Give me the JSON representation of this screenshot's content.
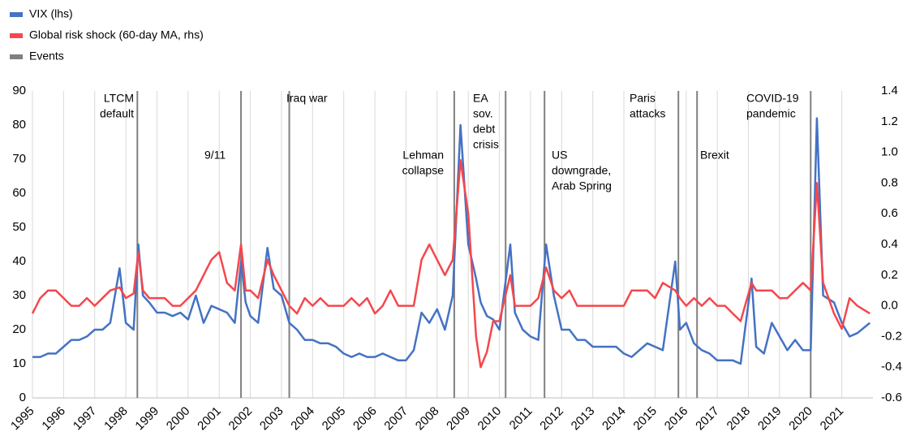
{
  "chart_data": {
    "type": "line",
    "xlim": [
      1995,
      2022
    ],
    "xticks": [
      1995,
      1996,
      1997,
      1998,
      1999,
      2000,
      2001,
      2002,
      2003,
      2004,
      2005,
      2006,
      2007,
      2008,
      2009,
      2010,
      2011,
      2012,
      2013,
      2014,
      2015,
      2016,
      2017,
      2018,
      2019,
      2020,
      2021
    ],
    "xgrid": true,
    "ylim": [
      0,
      90
    ],
    "yticks": [
      0,
      10,
      20,
      30,
      40,
      50,
      60,
      70,
      80,
      90
    ],
    "y2lim": [
      -0.6,
      1.4
    ],
    "y2ticks": [
      -0.6,
      -0.4,
      -0.2,
      {
        "value": 0,
        "label": "0.0"
      },
      0.2,
      0.4,
      0.6,
      0.8,
      {
        "value": 1,
        "label": "1.0"
      },
      1.2,
      1.4
    ],
    "x": [
      1995.0,
      1995.25,
      1995.5,
      1995.75,
      1996.0,
      1996.25,
      1996.5,
      1996.75,
      1997.0,
      1997.25,
      1997.5,
      1997.8,
      1998.0,
      1998.25,
      1998.4,
      1998.55,
      1998.75,
      1999.0,
      1999.25,
      1999.5,
      1999.75,
      2000.0,
      2000.25,
      2000.5,
      2000.75,
      2001.0,
      2001.25,
      2001.5,
      2001.7,
      2001.85,
      2002.0,
      2002.25,
      2002.55,
      2002.75,
      2003.0,
      2003.25,
      2003.5,
      2003.75,
      2004.0,
      2004.25,
      2004.5,
      2004.75,
      2005.0,
      2005.25,
      2005.5,
      2005.75,
      2006.0,
      2006.25,
      2006.5,
      2006.75,
      2007.0,
      2007.25,
      2007.5,
      2007.75,
      2008.0,
      2008.25,
      2008.5,
      2008.75,
      2009.0,
      2009.25,
      2009.4,
      2009.6,
      2009.8,
      2010.0,
      2010.35,
      2010.5,
      2010.75,
      2011.0,
      2011.25,
      2011.5,
      2011.75,
      2012.0,
      2012.25,
      2012.5,
      2012.75,
      2013.0,
      2013.25,
      2013.5,
      2013.75,
      2014.0,
      2014.25,
      2014.5,
      2014.75,
      2015.0,
      2015.25,
      2015.65,
      2015.8,
      2016.0,
      2016.25,
      2016.5,
      2016.75,
      2017.0,
      2017.25,
      2017.5,
      2017.75,
      2018.1,
      2018.25,
      2018.5,
      2018.75,
      2019.0,
      2019.25,
      2019.5,
      2019.75,
      2020.0,
      2020.2,
      2020.4,
      2020.75,
      2021.0,
      2021.25,
      2021.5,
      2021.9
    ],
    "series": [
      {
        "name": "VIX (lhs)",
        "color": "#4472c4",
        "axis": "y",
        "values": [
          12,
          12,
          13,
          13,
          15,
          17,
          17,
          18,
          20,
          20,
          22,
          38,
          22,
          20,
          45,
          30,
          28,
          25,
          25,
          24,
          25,
          23,
          30,
          22,
          27,
          26,
          25,
          22,
          40,
          28,
          24,
          22,
          44,
          32,
          30,
          22,
          20,
          17,
          17,
          16,
          16,
          15,
          13,
          12,
          13,
          12,
          12,
          13,
          12,
          11,
          11,
          14,
          25,
          22,
          26,
          20,
          30,
          80,
          45,
          35,
          28,
          24,
          23,
          20,
          45,
          25,
          20,
          18,
          17,
          45,
          30,
          20,
          20,
          17,
          17,
          15,
          15,
          15,
          15,
          13,
          12,
          14,
          16,
          15,
          14,
          40,
          20,
          22,
          16,
          14,
          13,
          11,
          11,
          11,
          10,
          35,
          15,
          13,
          22,
          18,
          14,
          17,
          14,
          14,
          82,
          30,
          28,
          22,
          18,
          19,
          22
        ]
      },
      {
        "name": "Global risk shock (60-day MA, rhs)",
        "color": "#f5474c",
        "axis": "y2",
        "values": [
          -0.05,
          0.05,
          0.1,
          0.1,
          0.05,
          0,
          0,
          0.05,
          0,
          0.05,
          0.1,
          0.12,
          0.05,
          0.08,
          0.35,
          0.1,
          0.05,
          0.05,
          0.05,
          0,
          0,
          0.05,
          0.1,
          0.2,
          0.3,
          0.35,
          0.15,
          0.1,
          0.4,
          0.1,
          0.1,
          0.05,
          0.3,
          0.2,
          0.1,
          0,
          -0.05,
          0.05,
          0,
          0.05,
          0,
          0,
          0,
          0.05,
          0,
          0.05,
          -0.05,
          0,
          0.1,
          0,
          0,
          0,
          0.3,
          0.4,
          0.3,
          0.2,
          0.3,
          0.95,
          0.6,
          -0.2,
          -0.4,
          -0.3,
          -0.1,
          -0.1,
          0.2,
          0,
          0,
          0,
          0.05,
          0.25,
          0.1,
          0.05,
          0.1,
          0,
          0,
          0,
          0,
          0,
          0,
          0,
          0.1,
          0.1,
          0.1,
          0.05,
          0.15,
          0.1,
          0.05,
          0,
          0.05,
          0,
          0.05,
          0,
          0,
          -0.05,
          -0.1,
          0.15,
          0.1,
          0.1,
          0.1,
          0.05,
          0.05,
          0.1,
          0.15,
          0.1,
          0.8,
          0.15,
          -0.05,
          -0.15,
          0.05,
          0,
          -0.05
        ]
      }
    ],
    "events": {
      "name": "Events",
      "color": "#808080",
      "items": [
        {
          "x": 1998.37,
          "label": [
            "LTCM",
            "default"
          ]
        },
        {
          "x": 2001.7,
          "label": [
            "9/11"
          ]
        },
        {
          "x": 2003.25,
          "label": [
            "Iraq war"
          ]
        },
        {
          "x": 2008.55,
          "label": [
            "Lehman",
            "collapse"
          ]
        },
        {
          "x": 2010.2,
          "label": [
            "EA",
            "sov.",
            "debt",
            "crisis"
          ]
        },
        {
          "x": 2011.45,
          "label": [
            "US",
            "downgrade,",
            "Arab Spring"
          ]
        },
        {
          "x": 2015.75,
          "label": [
            "Paris",
            "attacks"
          ]
        },
        {
          "x": 2016.35,
          "label": [
            "Brexit"
          ]
        },
        {
          "x": 2020.0,
          "label": [
            "COVID-19",
            "pandemic"
          ]
        }
      ]
    }
  }
}
